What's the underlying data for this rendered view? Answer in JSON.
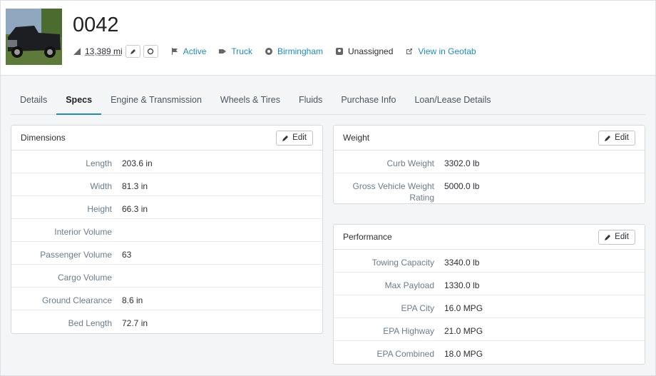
{
  "header": {
    "title": "0042",
    "mileage": "13,389",
    "mileage_unit": "mi",
    "status": "Active",
    "type": "Truck",
    "location": "Birmingham",
    "assignment": "Unassigned",
    "link": "View in Geotab"
  },
  "tabs": {
    "items": [
      "Details",
      "Specs",
      "Engine & Transmission",
      "Wheels & Tires",
      "Fluids",
      "Purchase Info",
      "Loan/Lease Details"
    ],
    "active": 1
  },
  "panels": [
    {
      "title": "Dimensions",
      "button": "Edit",
      "rows": [
        {
          "label": "Length",
          "value": "203.6 in"
        },
        {
          "label": "Width",
          "value": "81.3 in"
        },
        {
          "label": "Height",
          "value": "66.3 in"
        },
        {
          "label": "Interior Volume"
        },
        {
          "label": "Passenger Volume",
          "value": "63"
        },
        {
          "label": "Cargo Volume"
        },
        {
          "label": "Ground Clearance",
          "value": "8.6 in"
        },
        {
          "label": "Bed Length",
          "value": "72.7 in"
        }
      ]
    },
    {
      "title": "Weight",
      "button": "Edit",
      "rows": [
        {
          "label": "Curb Weight",
          "value": "3302.0 lb"
        },
        {
          "label": "Gross Vehicle Weight Rating",
          "value": "5000.0 lb"
        }
      ]
    },
    {
      "title": "Performance",
      "button": "Edit",
      "rows": [
        {
          "label": "Towing Capacity",
          "value": "3340.0 lb"
        },
        {
          "label": "Max Payload",
          "value": "1330.0 lb"
        },
        {
          "label": "EPA City",
          "value": "16.0 MPG"
        },
        {
          "label": "EPA Highway",
          "value": "21.0 MPG"
        },
        {
          "label": "EPA Combined",
          "value": "18.0 MPG"
        }
      ]
    }
  ]
}
